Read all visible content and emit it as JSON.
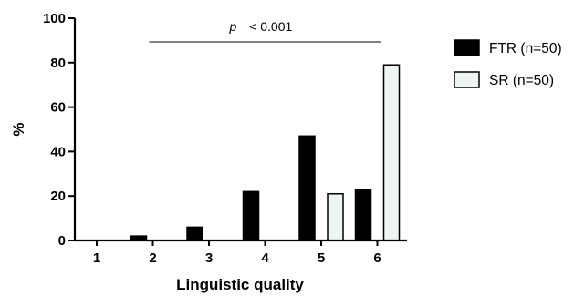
{
  "chart_data": {
    "type": "bar",
    "categories": [
      "1",
      "2",
      "3",
      "4",
      "5",
      "6"
    ],
    "series": [
      {
        "name": "FTR (n=50)",
        "color": "#000000",
        "values": [
          0,
          2,
          6,
          22,
          47,
          23
        ]
      },
      {
        "name": "SR (n=50)",
        "color": "#eef6f4",
        "values": [
          0,
          0,
          0,
          0,
          21,
          79
        ]
      }
    ],
    "xlabel": "Linguistic quality",
    "ylabel": "%",
    "ylim": [
      0,
      100
    ],
    "yticks": [
      "0",
      "20",
      "40",
      "60",
      "80",
      "100"
    ],
    "legend_position": "right",
    "annotation": {
      "p_symbol": "p",
      "text": "< 0.001",
      "from_category": "2",
      "to_category": "6"
    }
  }
}
